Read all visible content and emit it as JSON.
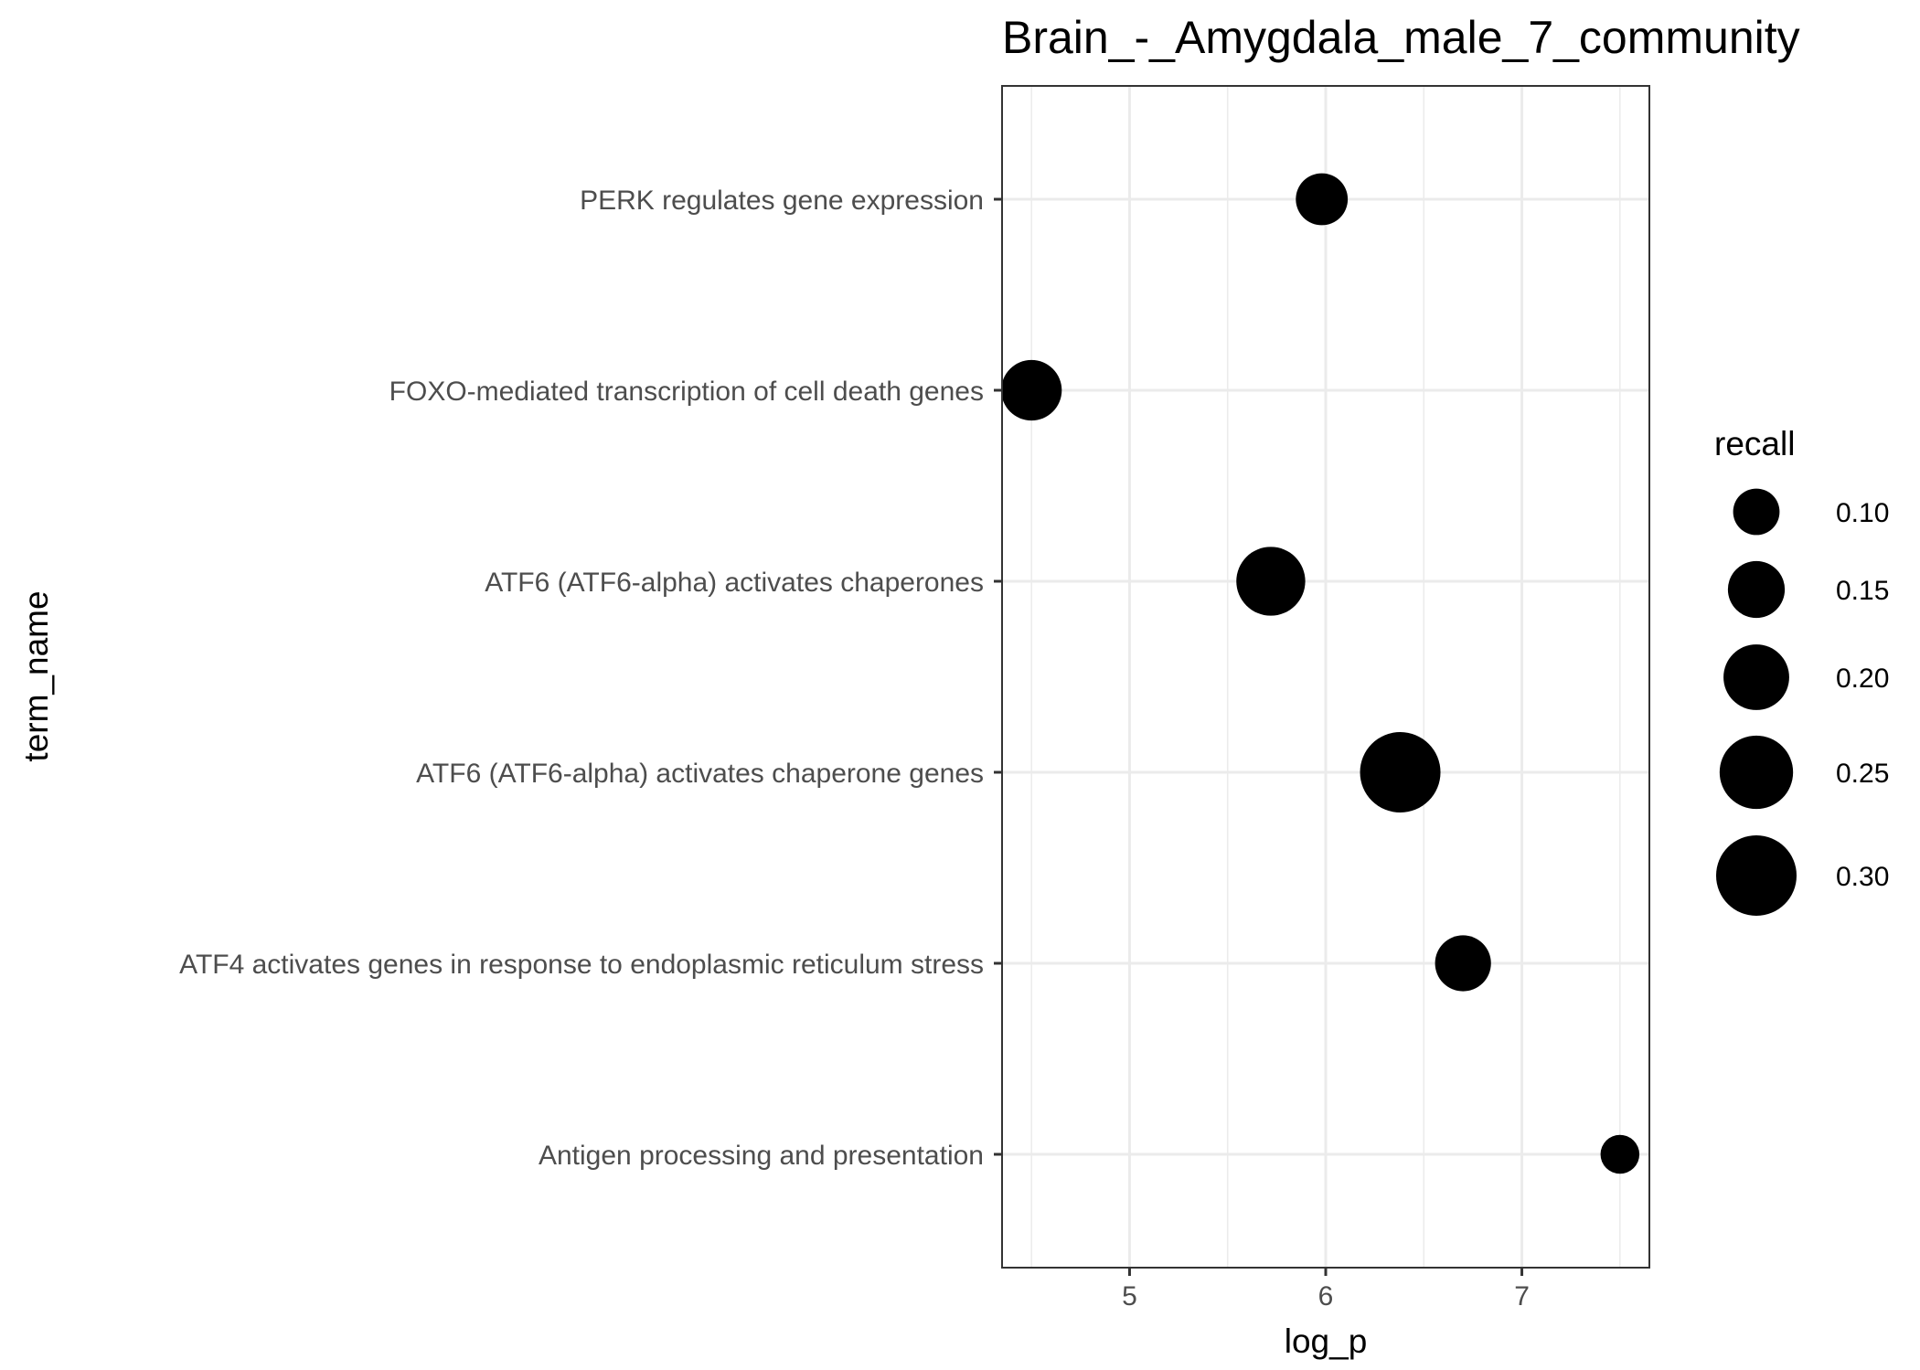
{
  "chart_data": {
    "type": "scatter",
    "title": "Brain_-_Amygdala_male_7_community",
    "xlabel": "log_p",
    "ylabel": "term_name",
    "xlim": [
      4.35,
      7.65
    ],
    "x_ticks": [
      5,
      6,
      7
    ],
    "x_tick_labels": [
      "5",
      "6",
      "7"
    ],
    "grid": true,
    "legend_position": "right",
    "size_legend": {
      "title": "recall",
      "values": [
        0.1,
        0.15,
        0.2,
        0.25,
        0.3
      ],
      "labels": [
        "0.10",
        "0.15",
        "0.20",
        "0.25",
        "0.30"
      ]
    },
    "categories": [
      "PERK regulates gene expression",
      "FOXO-mediated transcription of cell death genes",
      "ATF6 (ATF6-alpha) activates chaperones",
      "ATF6 (ATF6-alpha) activates chaperone genes",
      "ATF4 activates genes in response to endoplasmic reticulum  stress",
      "Antigen processing and presentation"
    ],
    "points": [
      {
        "term_name": "PERK regulates gene expression",
        "log_p": 5.98,
        "recall": 0.125
      },
      {
        "term_name": "FOXO-mediated transcription of cell death genes",
        "log_p": 4.5,
        "recall": 0.17
      },
      {
        "term_name": "ATF6 (ATF6-alpha) activates chaperones",
        "log_p": 5.72,
        "recall": 0.22
      },
      {
        "term_name": "ATF6 (ATF6-alpha) activates chaperone genes",
        "log_p": 6.38,
        "recall": 0.3
      },
      {
        "term_name": "ATF4 activates genes in response to endoplasmic reticulum  stress",
        "log_p": 6.7,
        "recall": 0.145
      },
      {
        "term_name": "Antigen processing and presentation",
        "log_p": 7.5,
        "recall": 0.07
      }
    ],
    "point_color": "#000000"
  }
}
